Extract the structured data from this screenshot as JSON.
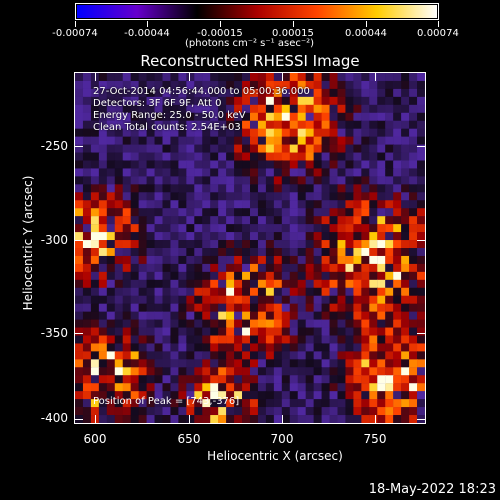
{
  "colorbar": {
    "tick_labels": [
      "-0.00074",
      "-0.00044",
      "-0.00015",
      "0.00015",
      "0.00044",
      "0.00074"
    ],
    "units_label": "(photons cm⁻² s⁻¹ asec⁻²)",
    "colormap": [
      "#0000ff",
      "#6600cc",
      "#000000",
      "#aa0000",
      "#ff4400",
      "#ffcc00",
      "#ffffff"
    ]
  },
  "plot": {
    "title": "Reconstructed RHESSI Image",
    "info_lines": [
      "27-Oct-2014 04:56:44.000 to 05:00:36.000",
      "Detectors: 3F 6F 9F, Att 0",
      "Energy Range: 25.0 - 50.0 keV",
      "Clean     Total counts: 2.54E+03"
    ],
    "peak_label": "Position of Peak = [743,-376]",
    "x_axis_label": "Heliocentric X (arcsec)",
    "y_axis_label": "Heliocentric Y (arcsec)",
    "x_tick_labels": [
      "600",
      "650",
      "700",
      "750"
    ],
    "y_tick_labels": [
      "-250",
      "-300",
      "-350",
      "-400"
    ]
  },
  "footer": {
    "timestamp": "18-May-2022 18:23"
  }
}
